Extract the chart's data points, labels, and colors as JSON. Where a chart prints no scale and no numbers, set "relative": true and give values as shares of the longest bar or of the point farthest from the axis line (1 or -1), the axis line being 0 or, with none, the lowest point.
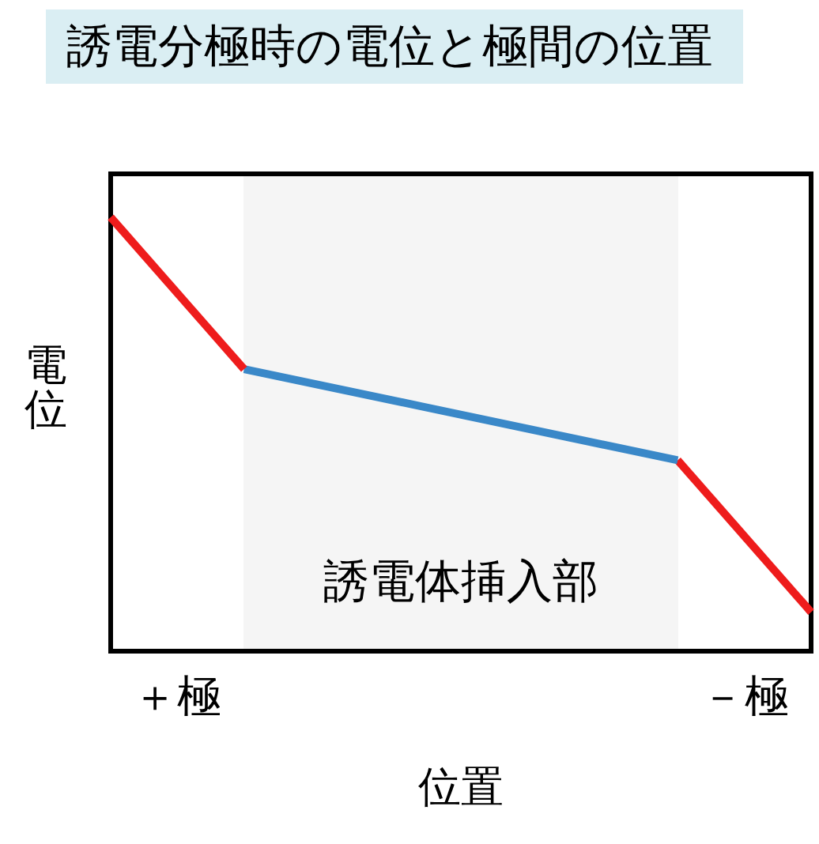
{
  "chart_data": {
    "type": "line",
    "title": "誘電分極時の電位と極間の位置",
    "xlabel": "位置",
    "ylabel": "電位",
    "relative": true,
    "categories": [
      null,
      null,
      "＋極",
      null,
      null,
      null,
      null,
      null,
      null,
      null,
      null,
      null,
      null,
      null,
      null,
      null,
      null,
      null,
      null,
      "－極",
      null,
      null
    ],
    "tick_labels": "x",
    "marker": "none",
    "annotations": [
      "誘電体挿入部"
    ],
    "series": [
      {
        "color": "#ee1c1c",
        "values": [
          1,
          null,
          null,
          null,
          0.65,
          null,
          null,
          null,
          null,
          null,
          null,
          null,
          null,
          null,
          null,
          null,
          null,
          null,
          null,
          null,
          null,
          null
        ]
      },
      {
        "color": "#3a88c8",
        "values": [
          null,
          null,
          null,
          null,
          0.65,
          null,
          null,
          null,
          null,
          null,
          null,
          null,
          null,
          null,
          null,
          null,
          null,
          0.44,
          null,
          null,
          null,
          null
        ]
      },
      {
        "color": "#ee1c1c",
        "values": [
          null,
          null,
          null,
          null,
          null,
          null,
          null,
          null,
          null,
          null,
          null,
          null,
          null,
          null,
          null,
          null,
          null,
          0.44,
          null,
          null,
          null,
          0.09
        ]
      }
    ]
  }
}
